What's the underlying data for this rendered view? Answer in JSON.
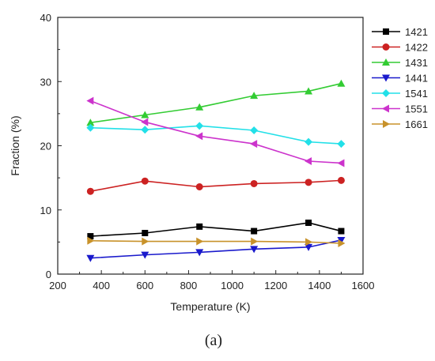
{
  "caption": "(a)",
  "chart_data": {
    "type": "line",
    "xlabel": "Temperature (K)",
    "ylabel": "Fraction (%)",
    "xlim": [
      200,
      1600
    ],
    "ylim": [
      0,
      40
    ],
    "x_ticks": [
      200,
      400,
      600,
      800,
      1000,
      1200,
      1400,
      1600
    ],
    "y_ticks": [
      0,
      10,
      20,
      30,
      40
    ],
    "legend_position": "right, outside plot",
    "grid": false,
    "x": [
      350,
      600,
      850,
      1100,
      1350,
      1500
    ],
    "series": [
      {
        "name": "1421",
        "color": "#000000",
        "marker": "square",
        "values": [
          5.9,
          6.4,
          7.4,
          6.7,
          8.0,
          6.7
        ]
      },
      {
        "name": "1422",
        "color": "#cc2222",
        "marker": "circle",
        "values": [
          12.9,
          14.5,
          13.6,
          14.1,
          14.3,
          14.6
        ]
      },
      {
        "name": "1431",
        "color": "#33cc33",
        "marker": "triangle-up",
        "values": [
          23.6,
          24.8,
          26.0,
          27.8,
          28.5,
          29.7
        ]
      },
      {
        "name": "1441",
        "color": "#1a1acc",
        "marker": "triangle-down",
        "values": [
          2.5,
          3.0,
          3.4,
          3.9,
          4.2,
          5.3
        ]
      },
      {
        "name": "1541",
        "color": "#22e0e8",
        "marker": "diamond",
        "values": [
          22.8,
          22.5,
          23.1,
          22.4,
          20.6,
          20.3
        ]
      },
      {
        "name": "1551",
        "color": "#cc33cc",
        "marker": "triangle-left",
        "values": [
          27.0,
          23.7,
          21.5,
          20.3,
          17.6,
          17.3
        ]
      },
      {
        "name": "1661",
        "color": "#c8922a",
        "marker": "triangle-right",
        "values": [
          5.2,
          5.1,
          5.1,
          5.1,
          5.0,
          4.8
        ]
      }
    ]
  }
}
